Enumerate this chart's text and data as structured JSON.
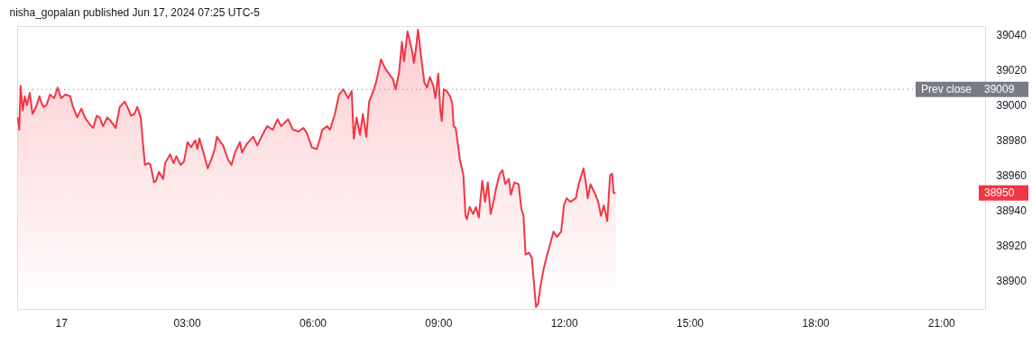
{
  "chart_data": {
    "type": "area",
    "title": "nisha_gopalan published Jun 17, 2024 07:25 UTC-5",
    "x": [
      "2024-06-16T22:58",
      "2024-06-16T23:00",
      "2024-06-16T23:02",
      "2024-06-16T23:05",
      "2024-06-16T23:08",
      "2024-06-16T23:11",
      "2024-06-16T23:15",
      "2024-06-16T23:19",
      "2024-06-16T23:24",
      "2024-06-16T23:29",
      "2024-06-16T23:32",
      "2024-06-16T23:35",
      "2024-06-16T23:39",
      "2024-06-16T23:44",
      "2024-06-16T23:50",
      "2024-06-16T23:55",
      "2024-06-17T00:00",
      "2024-06-17T00:06",
      "2024-06-17T00:13",
      "2024-06-17T00:17",
      "2024-06-17T00:23",
      "2024-06-17T00:29",
      "2024-06-17T00:34",
      "2024-06-17T00:41",
      "2024-06-17T00:46",
      "2024-06-17T00:51",
      "2024-06-17T00:55",
      "2024-06-17T01:00",
      "2024-06-17T01:06",
      "2024-06-17T01:11",
      "2024-06-17T01:18",
      "2024-06-17T01:22",
      "2024-06-17T01:24",
      "2024-06-17T01:31",
      "2024-06-17T01:36",
      "2024-06-17T01:40",
      "2024-06-17T01:45",
      "2024-06-17T01:49",
      "2024-06-17T01:54",
      "2024-06-17T01:57",
      "2024-06-17T02:00",
      "2024-06-17T02:05",
      "2024-06-17T02:08",
      "2024-06-17T02:13",
      "2024-06-17T02:16",
      "2024-06-17T02:20",
      "2024-06-17T02:26",
      "2024-06-17T02:29",
      "2024-06-17T02:36",
      "2024-06-17T02:41",
      "2024-06-17T02:45",
      "2024-06-17T02:51",
      "2024-06-17T02:56",
      "2024-06-17T03:01",
      "2024-06-17T03:06",
      "2024-06-17T03:12",
      "2024-06-17T03:15",
      "2024-06-17T03:18",
      "2024-06-17T03:23",
      "2024-06-17T03:30",
      "2024-06-17T03:35",
      "2024-06-17T03:40",
      "2024-06-17T03:43",
      "2024-06-17T03:52",
      "2024-06-17T03:59",
      "2024-06-17T04:04",
      "2024-06-17T04:09",
      "2024-06-17T04:16",
      "2024-06-17T04:19",
      "2024-06-17T04:26",
      "2024-06-17T04:35",
      "2024-06-17T04:41",
      "2024-06-17T04:48",
      "2024-06-17T04:55",
      "2024-06-17T05:03",
      "2024-06-17T05:10",
      "2024-06-17T05:15",
      "2024-06-17T05:25",
      "2024-06-17T05:32",
      "2024-06-17T05:40",
      "2024-06-17T05:47",
      "2024-06-17T05:52",
      "2024-06-17T05:59",
      "2024-06-17T06:06",
      "2024-06-17T06:10",
      "2024-06-17T06:14",
      "2024-06-17T06:21",
      "2024-06-17T06:25",
      "2024-06-17T06:32",
      "2024-06-17T06:38",
      "2024-06-17T06:44",
      "2024-06-17T06:51",
      "2024-06-17T06:56",
      "2024-06-17T06:59",
      "2024-06-17T07:03",
      "2024-06-17T07:08",
      "2024-06-17T07:12",
      "2024-06-17T07:17",
      "2024-06-17T07:21",
      "2024-06-17T07:27",
      "2024-06-17T07:31",
      "2024-06-17T07:38",
      "2024-06-17T07:44",
      "2024-06-17T07:51",
      "2024-06-17T07:55",
      "2024-06-17T07:59",
      "2024-06-17T08:04",
      "2024-06-17T08:08",
      "2024-06-17T08:11",
      "2024-06-17T08:16",
      "2024-06-17T08:23",
      "2024-06-17T08:25",
      "2024-06-17T08:28",
      "2024-06-17T08:31",
      "2024-06-17T08:36",
      "2024-06-17T08:40",
      "2024-06-17T08:44",
      "2024-06-17T08:48",
      "2024-06-17T08:53",
      "2024-06-17T08:56",
      "2024-06-17T09:00",
      "2024-06-17T09:03",
      "2024-06-17T09:05",
      "2024-06-17T09:08",
      "2024-06-17T09:12",
      "2024-06-17T09:17",
      "2024-06-17T09:20",
      "2024-06-17T09:22",
      "2024-06-17T09:25",
      "2024-06-17T09:31",
      "2024-06-17T09:36",
      "2024-06-17T09:39",
      "2024-06-17T09:41",
      "2024-06-17T09:45",
      "2024-06-17T09:50",
      "2024-06-17T09:54",
      "2024-06-17T09:58",
      "2024-06-17T10:03",
      "2024-06-17T10:07",
      "2024-06-17T10:11",
      "2024-06-17T10:15",
      "2024-06-17T10:19",
      "2024-06-17T10:23",
      "2024-06-17T10:28",
      "2024-06-17T10:32",
      "2024-06-17T10:36",
      "2024-06-17T10:41",
      "2024-06-17T10:44",
      "2024-06-17T10:49",
      "2024-06-17T10:55",
      "2024-06-17T10:59",
      "2024-06-17T11:02",
      "2024-06-17T11:05",
      "2024-06-17T11:10",
      "2024-06-17T11:14",
      "2024-06-17T11:18",
      "2024-06-17T11:20",
      "2024-06-17T11:23",
      "2024-06-17T11:26",
      "2024-06-17T11:31",
      "2024-06-17T11:36",
      "2024-06-17T11:39",
      "2024-06-17T11:45",
      "2024-06-17T11:50",
      "2024-06-17T11:56",
      "2024-06-17T12:00",
      "2024-06-17T12:04",
      "2024-06-17T12:09",
      "2024-06-17T12:17",
      "2024-06-17T12:21",
      "2024-06-17T12:28",
      "2024-06-17T12:32",
      "2024-06-17T12:34",
      "2024-06-17T12:38",
      "2024-06-17T12:45",
      "2024-06-17T12:49",
      "2024-06-17T12:53",
      "2024-06-17T12:57",
      "2024-06-17T13:02",
      "2024-06-17T13:06",
      "2024-06-17T13:09",
      "2024-06-17T13:11",
      "2024-06-17T13:14"
    ],
    "series": [
      {
        "color": "#f23645",
        "values": [
          38993,
          38986,
          39011,
          38997,
          39005,
          39000,
          39007,
          38995,
          38999,
          39005,
          39001,
          38999,
          39000,
          39006,
          39004,
          39010,
          39004,
          39006,
          39005,
          38999,
          38993,
          38998,
          38993,
          38989,
          38987,
          38994,
          38993,
          38988,
          38993,
          38991,
          38987,
          38995,
          38999,
          39002,
          38998,
          38994,
          38995,
          38999,
          38993,
          38979,
          38966,
          38967,
          38966,
          38956,
          38957,
          38962,
          38958,
          38967,
          38972,
          38967,
          38971,
          38966,
          38968,
          38979,
          38976,
          38980,
          38975,
          38981,
          38974,
          38964,
          38969,
          38975,
          38982,
          38977,
          38969,
          38966,
          38973,
          38979,
          38973,
          38978,
          38982,
          38977,
          38983,
          38988,
          38986,
          38992,
          38988,
          38992,
          38986,
          38985,
          38987,
          38984,
          38976,
          38975,
          38980,
          38986,
          38988,
          38986,
          38995,
          39006,
          39009,
          39004,
          39008,
          38981,
          38993,
          38983,
          38995,
          38982,
          39002,
          39008,
          39013,
          39026,
          39021,
          39017,
          39015,
          39009,
          39019,
          39036,
          39025,
          39042,
          39030,
          39024,
          39032,
          39043,
          39026,
          39013,
          39010,
          39016,
          39011,
          39004,
          39018,
          38997,
          38991,
          39009,
          39008,
          39005,
          39001,
          38988,
          38987,
          38969,
          38960,
          38937,
          38935,
          38942,
          38938,
          38942,
          38936,
          38957,
          38945,
          38956,
          38938,
          38945,
          38953,
          38961,
          38963,
          38955,
          38958,
          38949,
          38956,
          38955,
          38941,
          38937,
          38915,
          38916,
          38913,
          38894,
          38885,
          38887,
          38896,
          38907,
          38915,
          38919,
          38928,
          38925,
          38928,
          38943,
          38947,
          38945,
          38947,
          38955,
          38964,
          38954,
          38947,
          38955,
          38949,
          38945,
          38937,
          38943,
          38934,
          38960,
          38961,
          38950,
          38950
        ]
      }
    ],
    "xlim": [
      "2024-06-16T22:57",
      "2024-06-17T22:03"
    ],
    "xticks": [
      {
        "value": "2024-06-17T00:00",
        "label": "17"
      },
      {
        "value": "2024-06-17T03:00",
        "label": "03:00"
      },
      {
        "value": "2024-06-17T06:00",
        "label": "06:00"
      },
      {
        "value": "2024-06-17T09:00",
        "label": "09:00"
      },
      {
        "value": "2024-06-17T12:00",
        "label": "12:00"
      },
      {
        "value": "2024-06-17T15:00",
        "label": "15:00"
      },
      {
        "value": "2024-06-17T18:00",
        "label": "18:00"
      },
      {
        "value": "2024-06-17T21:00",
        "label": "21:00"
      }
    ],
    "ylim": [
      38884,
      39045
    ],
    "yticks": [
      38900,
      38920,
      38940,
      38960,
      38980,
      39000,
      39020,
      39040
    ],
    "ref_lines": [
      {
        "axis": "y",
        "value": 39009,
        "label": "Prev close",
        "color": "#787b86",
        "line_style": "dotted"
      }
    ],
    "annotations": [
      "39009",
      "38950"
    ],
    "grid": false
  }
}
